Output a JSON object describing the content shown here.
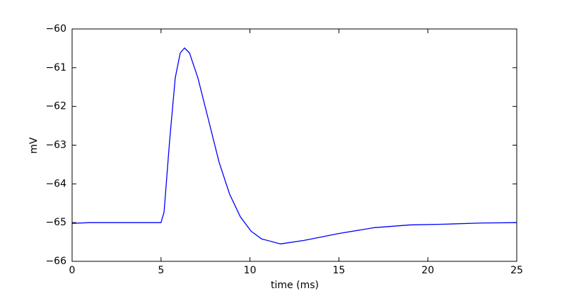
{
  "chart_data": {
    "type": "line",
    "xlabel": "time (ms)",
    "ylabel": "mV",
    "x": [
      0,
      1,
      3,
      5,
      5.17,
      5.48,
      5.8,
      6.08,
      6.32,
      6.6,
      7.07,
      7.67,
      8.27,
      8.86,
      9.46,
      10.06,
      10.65,
      11.72,
      13.04,
      15.02,
      17,
      19,
      21,
      23,
      25
    ],
    "series": [
      {
        "name": "mV",
        "color": "#0000ff",
        "values": [
          -65.02,
          -65.0,
          -65.0,
          -65.0,
          -64.73,
          -62.9,
          -61.26,
          -60.62,
          -60.49,
          -60.62,
          -61.26,
          -62.35,
          -63.45,
          -64.27,
          -64.85,
          -65.22,
          -65.42,
          -65.55,
          -65.46,
          -65.28,
          -65.13,
          -65.06,
          -65.04,
          -65.01,
          -65.0
        ]
      }
    ],
    "xlim": [
      0,
      25
    ],
    "xticks": [
      0,
      5,
      10,
      15,
      20,
      25
    ],
    "ylim": [
      -66,
      -60
    ],
    "yticks": [
      {
        "value": -66,
        "label": "−66"
      },
      {
        "value": -65,
        "label": "−65"
      },
      {
        "value": -64,
        "label": "−64"
      },
      {
        "value": -63,
        "label": "−63"
      },
      {
        "value": -62,
        "label": "−62"
      },
      {
        "value": -61,
        "label": "−61"
      },
      {
        "value": -60,
        "label": "−60"
      }
    ],
    "grid": false
  }
}
